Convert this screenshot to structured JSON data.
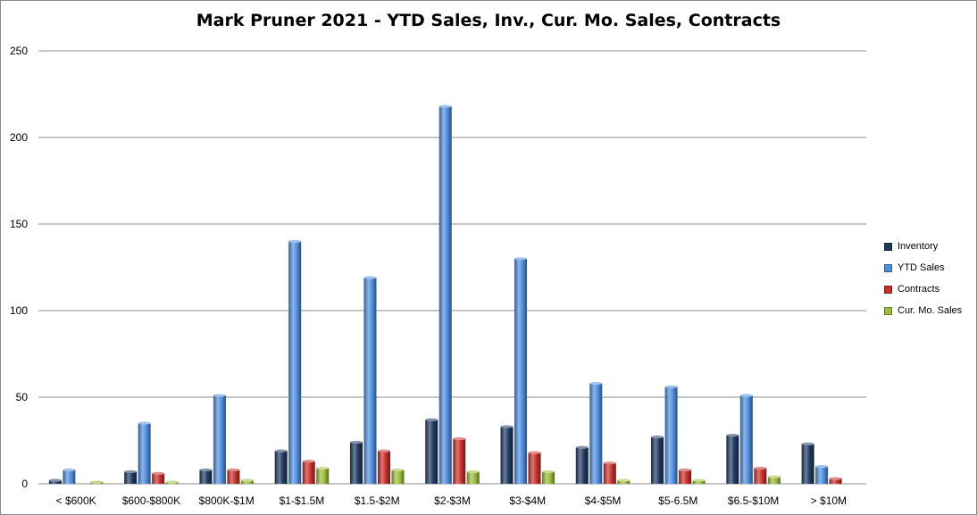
{
  "chart_data": {
    "type": "bar",
    "title": "Mark Pruner 2021 - YTD Sales, Inv., Cur. Mo. Sales, Contracts",
    "xlabel": "",
    "ylabel": "",
    "ylim": [
      0,
      250
    ],
    "yticks": [
      "0",
      "50",
      "100",
      "150",
      "200",
      "250"
    ],
    "grid": true,
    "legend_position": "right",
    "categories": [
      "< $600K",
      "$600-$800K",
      "$800K-$1M",
      "$1-$1.5M",
      "$1.5-$2M",
      "$2-$3M",
      "$3-$4M",
      "$4-$5M",
      "$5-6.5M",
      "$6.5-$10M",
      "> $10M"
    ],
    "series": [
      {
        "name": "Inventory",
        "color": "#1f3a63",
        "values": [
          2,
          7,
          8,
          19,
          24,
          37,
          33,
          21,
          27,
          28,
          23
        ]
      },
      {
        "name": "YTD Sales",
        "color": "#4f8fe0",
        "values": [
          8,
          35,
          51,
          140,
          119,
          218,
          130,
          58,
          56,
          51,
          10
        ]
      },
      {
        "name": "Contracts",
        "color": "#c8302b",
        "values": [
          0,
          6,
          8,
          13,
          19,
          26,
          18,
          12,
          8,
          9,
          3
        ]
      },
      {
        "name": "Cur. Mo. Sales",
        "color": "#9bbf3a",
        "values": [
          1,
          1,
          2,
          9,
          8,
          7,
          7,
          2,
          2,
          4,
          0
        ]
      }
    ]
  }
}
